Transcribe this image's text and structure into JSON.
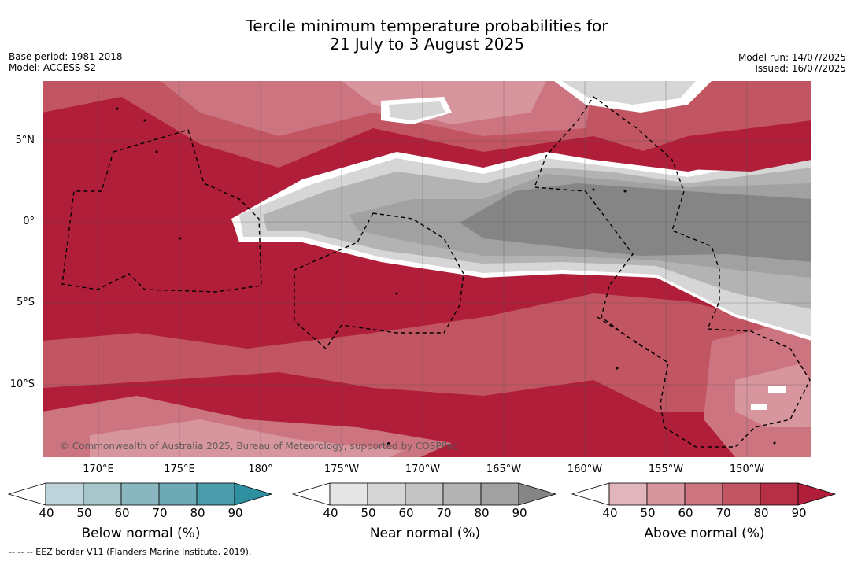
{
  "title_line1": "Tercile minimum temperature probabilities for",
  "title_line2": "21 July to 3 August 2025",
  "base_period": "Base period: 1981-2018",
  "model": "Model: ACCESS-S2",
  "model_run": "Model run: 14/07/2025",
  "issued": "Issued: 16/07/2025",
  "latitude_labels": [
    "5°N",
    "0°",
    "5°S",
    "10°S"
  ],
  "longitude_labels": [
    "170°E",
    "175°E",
    "180°",
    "175°W",
    "170°W",
    "165°W",
    "160°W",
    "155°W",
    "150°W"
  ],
  "copyright": "© Commonwealth of Australia 2025, Bureau of Meteorology, supported by COSPPac",
  "colorbars": [
    {
      "label": "Below normal (%)",
      "ticks": [
        "40",
        "50",
        "60",
        "70",
        "80",
        "90"
      ],
      "colors": [
        "#ffffff",
        "#bdd4da",
        "#a6c6cc",
        "#8ab6c0",
        "#6eaab5",
        "#4a9caa",
        "#2e8fa0"
      ]
    },
    {
      "label": "Near normal (%)",
      "ticks": [
        "40",
        "50",
        "60",
        "70",
        "80",
        "90"
      ],
      "colors": [
        "#ffffff",
        "#e6e6e6",
        "#d6d6d6",
        "#c4c4c4",
        "#b3b3b3",
        "#a1a1a1",
        "#858585"
      ]
    },
    {
      "label": "Above normal (%)",
      "ticks": [
        "40",
        "50",
        "60",
        "70",
        "80",
        "90"
      ],
      "colors": [
        "#ffffff",
        "#e0b5bb",
        "#d7959d",
        "#cc747f",
        "#c15562",
        "#b72f45",
        "#b01e3a"
      ]
    }
  ],
  "footnote": "--  --  -- EEZ border V11 (Flanders Marine Institute, 2019)."
}
